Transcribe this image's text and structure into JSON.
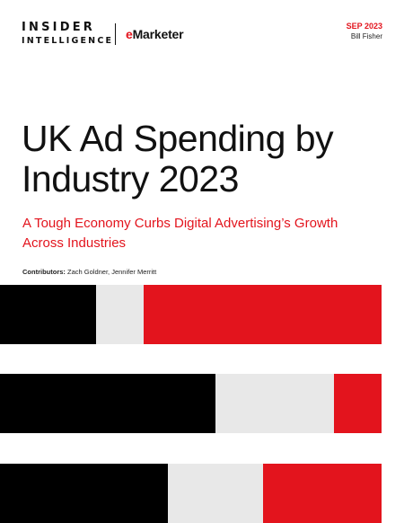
{
  "header": {
    "brand_line1": "INSIDER",
    "brand_line2": "INTELLIGENCE",
    "brand_e": "e",
    "brand_emarketer": "Marketer",
    "date": "SEP 2023",
    "author": "Bill Fisher"
  },
  "cover": {
    "title": "UK Ad Spending by Industry 2023",
    "subtitle": "A Tough Economy Curbs Digital Advertising’s Growth Across Industries",
    "contributors_label": "Contributors:",
    "contributors_names": "Zach Goldner, Jennifer Merritt"
  },
  "decor": {
    "colors": {
      "black": "#000000",
      "grey": "#e8e8e8",
      "red": "#e3141d",
      "accent": "#e3141d"
    }
  }
}
